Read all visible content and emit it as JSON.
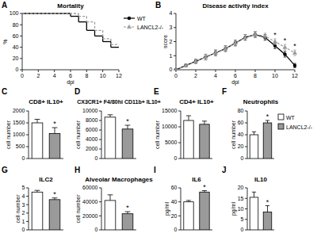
{
  "chart_data": [
    {
      "panel": "A",
      "type": "step",
      "title": "Mortality",
      "x_label": "dpi",
      "y_label": "%",
      "xlim": [
        0,
        12
      ],
      "xticks": [
        0,
        2,
        4,
        6,
        8,
        10,
        12
      ],
      "ylim": [
        0,
        100
      ],
      "yticks": [
        0,
        20,
        40,
        60,
        80,
        100
      ],
      "legend": "right",
      "series": [
        {
          "name": "WT",
          "color": "#000000",
          "line_style": "solid",
          "x": [
            0,
            6,
            7,
            8,
            9,
            10,
            11,
            12
          ],
          "values": [
            100,
            95,
            85,
            70,
            60,
            50,
            40,
            40
          ]
        },
        {
          "name": "LANCL2-/-",
          "color": "#9a9a9a",
          "line_style": "dashed",
          "x": [
            0,
            7,
            8,
            9,
            10,
            11,
            12
          ],
          "values": [
            100,
            95,
            85,
            70,
            55,
            45,
            45
          ]
        }
      ]
    },
    {
      "panel": "B",
      "type": "line",
      "title": "Disease activity index",
      "x_label": "dpi",
      "y_label": "score",
      "x": [
        0,
        1,
        2,
        3,
        4,
        5,
        6,
        7,
        8,
        9,
        10,
        11,
        12
      ],
      "xlim": [
        0,
        12
      ],
      "xticks": [
        0,
        2,
        4,
        6,
        8,
        10,
        12
      ],
      "ylim": [
        0,
        4
      ],
      "yticks": [
        0,
        1,
        2,
        3,
        4
      ],
      "series": [
        {
          "color": "#000000",
          "line_style": "solid",
          "marker": "circle",
          "values": [
            0,
            0.3,
            0.6,
            0.9,
            1.2,
            1.5,
            1.9,
            2.3,
            2.5,
            2.3,
            1.7,
            1.1,
            0.3
          ],
          "errors": [
            0,
            0.1,
            0.15,
            0.2,
            0.2,
            0.2,
            0.2,
            0.2,
            0.2,
            0.2,
            0.2,
            0.2,
            0.15
          ]
        },
        {
          "color": "#9a9a9a",
          "line_style": "dashed",
          "marker": "triangle",
          "values": [
            0,
            0.3,
            0.6,
            0.9,
            1.2,
            1.5,
            1.9,
            2.3,
            2.5,
            2.4,
            2.0,
            1.6,
            1.2
          ],
          "errors": [
            0,
            0.1,
            0.15,
            0.2,
            0.2,
            0.2,
            0.2,
            0.2,
            0.2,
            0.2,
            0.2,
            0.2,
            0.2
          ]
        }
      ],
      "annotations": [
        {
          "text": "*",
          "x": 10
        },
        {
          "text": "*",
          "x": 11
        },
        {
          "text": "*",
          "x": 12
        }
      ]
    },
    {
      "panel": "C",
      "type": "bar",
      "title": "CD8+ IL10+",
      "y_label": "cell number",
      "categories": [
        null,
        null
      ],
      "values": [
        1500,
        1050
      ],
      "errors": [
        150,
        250
      ],
      "colors": [
        "#ffffff",
        "#9a9a9a"
      ],
      "ylim": [
        0,
        2000
      ],
      "yticks": [
        0,
        500,
        1000,
        1500,
        2000
      ],
      "annotations": [
        {
          "text": "*",
          "x": 1
        }
      ]
    },
    {
      "panel": "D",
      "type": "bar",
      "title": "CX3CR1+ F4/80hi CD11b+ IL10+",
      "y_label": "cell number",
      "categories": [
        null,
        null
      ],
      "values": [
        8700,
        6200
      ],
      "errors": [
        500,
        800
      ],
      "colors": [
        "#ffffff",
        "#9a9a9a"
      ],
      "ylim": [
        0,
        10000
      ],
      "yticks": [
        0,
        2000,
        4000,
        6000,
        8000,
        10000
      ],
      "annotations": [
        {
          "text": "*",
          "x": 1
        }
      ]
    },
    {
      "panel": "E",
      "type": "bar",
      "title": "CD4+ IL10+",
      "y_label": "cell number",
      "categories": [
        null,
        null
      ],
      "values": [
        12000,
        10800
      ],
      "errors": [
        1500,
        1000
      ],
      "colors": [
        "#ffffff",
        "#9a9a9a"
      ],
      "ylim": [
        0,
        15000
      ],
      "yticks": [
        0,
        5000,
        10000,
        15000
      ]
    },
    {
      "panel": "F",
      "type": "bar",
      "title": "Neutrophils",
      "y_label": "cell number",
      "categories": [
        null
      ],
      "series": [
        {
          "name": "WT",
          "color": "#ffffff",
          "values": [
            40
          ],
          "errors": [
            5
          ]
        },
        {
          "name": "LANCL2-/-",
          "color": "#9a9a9a",
          "values": [
            60
          ],
          "errors": [
            4
          ]
        }
      ],
      "legend": "right",
      "ylim": [
        0,
        80
      ],
      "yticks": [
        0,
        20,
        40,
        60,
        80
      ],
      "annotations": [
        {
          "text": "*",
          "x": 1
        }
      ]
    },
    {
      "panel": "G",
      "type": "bar",
      "title": "ILC2",
      "y_label": "cell number",
      "categories": [
        null,
        null
      ],
      "values": [
        4.5,
        3.6
      ],
      "errors": [
        0.2,
        0.2
      ],
      "colors": [
        "#ffffff",
        "#9a9a9a"
      ],
      "ylim": [
        0,
        5
      ],
      "yticks": [
        0,
        1,
        2,
        3,
        4,
        5
      ],
      "annotations": [
        {
          "text": "*",
          "x": 1
        }
      ]
    },
    {
      "panel": "H",
      "type": "bar",
      "title": "Alveolar Macrophages",
      "y_label": "cell number",
      "categories": [
        null,
        null
      ],
      "values": [
        42000,
        23000
      ],
      "errors": [
        8000,
        3000
      ],
      "colors": [
        "#ffffff",
        "#9a9a9a"
      ],
      "ylim": [
        0,
        60000
      ],
      "yticks": [
        0,
        20000,
        40000,
        60000
      ],
      "annotations": [
        {
          "text": "*",
          "x": 1
        }
      ]
    },
    {
      "panel": "I",
      "type": "bar",
      "title": "IL6",
      "y_label": "pg/ml",
      "categories": [
        null,
        null
      ],
      "values": [
        40,
        54
      ],
      "errors": [
        2,
        2
      ],
      "colors": [
        "#ffffff",
        "#9a9a9a"
      ],
      "ylim": [
        0,
        60
      ],
      "yticks": [
        0,
        20,
        40,
        60
      ],
      "annotations": [
        {
          "text": "*",
          "x": 1
        }
      ]
    },
    {
      "panel": "J",
      "type": "bar",
      "title": "IL10",
      "y_label": "pg/ml",
      "categories": [
        null,
        null
      ],
      "values": [
        15.5,
        8.5
      ],
      "errors": [
        2.5,
        3
      ],
      "colors": [
        "#ffffff",
        "#9a9a9a"
      ],
      "ylim": [
        0,
        20
      ],
      "yticks": [
        0,
        5,
        10,
        15,
        20
      ],
      "annotations": [
        {
          "text": "*",
          "x": 1
        }
      ]
    }
  ]
}
